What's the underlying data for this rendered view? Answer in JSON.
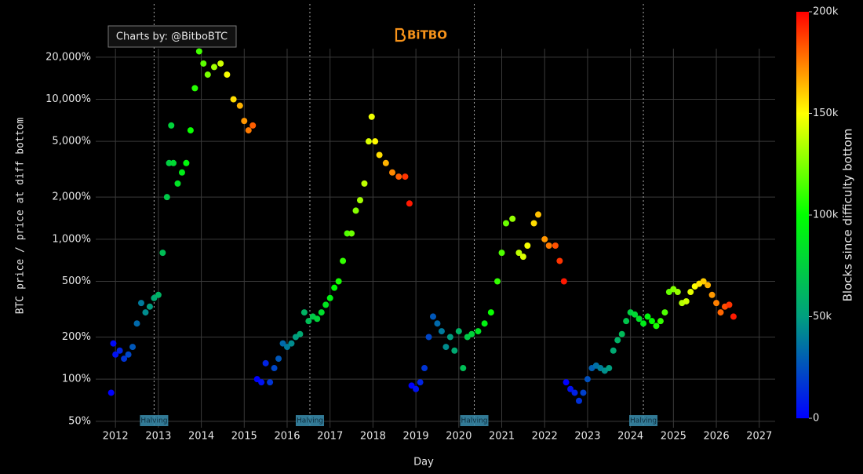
{
  "chart_data": {
    "type": "scatter",
    "logo": "BiTBO",
    "annotation": "Charts by: @BitboBTC",
    "x_label": "Day",
    "y_label": "BTC price / price at diff bottom",
    "log_y": true,
    "grid": true,
    "xlim": [
      2011.54,
      2027.37
    ],
    "xticks": [
      2012,
      2013,
      2014,
      2015,
      2016,
      2017,
      2018,
      2019,
      2020,
      2021,
      2022,
      2023,
      2024,
      2025,
      2026,
      2027
    ],
    "ylim": [
      45,
      23000
    ],
    "yticks": [
      {
        "value": 50,
        "label": "50%"
      },
      {
        "value": 100,
        "label": "100%"
      },
      {
        "value": 200,
        "label": "200%"
      },
      {
        "value": 500,
        "label": "500%"
      },
      {
        "value": 1000,
        "label": "1,000%"
      },
      {
        "value": 2000,
        "label": "2,000%"
      },
      {
        "value": 5000,
        "label": "5,000%"
      },
      {
        "value": 10000,
        "label": "10,000%"
      },
      {
        "value": 20000,
        "label": "20,000%"
      }
    ],
    "halvings": [
      {
        "x": 2012.9,
        "label": "Halving"
      },
      {
        "x": 2016.53,
        "label": "Halving"
      },
      {
        "x": 2020.36,
        "label": "Halving"
      },
      {
        "x": 2024.3,
        "label": "Halving"
      }
    ],
    "colorbar": {
      "title": "Blocks since difficulty bottom",
      "lim": [
        0,
        200000
      ],
      "ticks": [
        0,
        {
          "value": 50000,
          "label": "50k"
        },
        {
          "value": 100000,
          "label": "100k"
        },
        {
          "value": 150000,
          "label": "150k"
        },
        {
          "value": 200000,
          "label": "200k"
        }
      ],
      "colorscale": [
        "#0000ff",
        "#009f7f",
        "#00ff00",
        "#ffff00",
        "#ff0000"
      ]
    },
    "series": [
      {
        "x": [
          2011.9,
          2011.95,
          2012.0,
          2012.1,
          2012.2,
          2012.3,
          2012.4,
          2012.5,
          2012.6,
          2012.7,
          2012.8,
          2012.9,
          2013.0,
          2013.1,
          2013.2,
          2013.25,
          2013.3,
          2013.35,
          2013.45,
          2013.55,
          2013.65,
          2013.75,
          2013.85,
          2013.95,
          2014.05,
          2014.15,
          2014.3,
          2014.45,
          2014.6,
          2014.75,
          2014.9,
          2015.0,
          2015.1,
          2015.2
        ],
        "values": [
          80,
          180,
          150,
          160,
          140,
          150,
          170,
          250,
          350,
          300,
          330,
          380,
          400,
          800,
          2000,
          3500,
          6500,
          3500,
          2500,
          3000,
          3500,
          6000,
          12000,
          22000,
          18000,
          15000,
          17000,
          18000,
          15000,
          10000,
          9000,
          7000,
          6000,
          6500
        ],
        "blocks": [
          0,
          2750,
          5500,
          11000,
          16500,
          22000,
          27500,
          33000,
          38500,
          44000,
          49500,
          55000,
          60500,
          66000,
          71500,
          74250,
          77000,
          79750,
          85250,
          90750,
          96250,
          101750,
          107250,
          112750,
          118250,
          123750,
          132000,
          140250,
          148500,
          156750,
          165000,
          170500,
          176000,
          181500
        ]
      },
      {
        "x": [
          2015.3,
          2015.4,
          2015.5,
          2015.6,
          2015.7,
          2015.8,
          2015.9,
          2016.0,
          2016.1,
          2016.2,
          2016.3,
          2016.4,
          2016.5,
          2016.6,
          2016.7,
          2016.8,
          2016.9,
          2017.0,
          2017.1,
          2017.2,
          2017.3,
          2017.4,
          2017.5,
          2017.6,
          2017.7,
          2017.8,
          2017.9,
          2017.97,
          2018.05,
          2018.15,
          2018.3,
          2018.45,
          2018.6,
          2018.75,
          2018.85
        ],
        "values": [
          100,
          95,
          130,
          95,
          120,
          140,
          180,
          170,
          180,
          200,
          210,
          300,
          260,
          280,
          270,
          300,
          340,
          380,
          450,
          500,
          700,
          1100,
          1100,
          1600,
          1900,
          2500,
          5000,
          7500,
          5000,
          4000,
          3500,
          3000,
          2800,
          2800,
          1800
        ],
        "blocks": [
          0,
          5500,
          11000,
          16500,
          22000,
          27500,
          33000,
          38500,
          44000,
          49500,
          55000,
          60500,
          66000,
          71500,
          77000,
          82500,
          88000,
          93500,
          99000,
          104500,
          110000,
          115500,
          121000,
          126500,
          132000,
          137500,
          143000,
          146850,
          151250,
          156750,
          165000,
          173250,
          181500,
          189750,
          195250
        ]
      },
      {
        "x": [
          2018.9,
          2019.0,
          2019.1,
          2019.2,
          2019.3,
          2019.4,
          2019.5,
          2019.6,
          2019.7,
          2019.8,
          2019.9,
          2020.0,
          2020.1,
          2020.2,
          2020.3,
          2020.45,
          2020.6,
          2020.75,
          2020.9,
          2021.0,
          2021.1,
          2021.25,
          2021.4,
          2021.5,
          2021.6,
          2021.75,
          2021.85,
          2022.0,
          2022.1,
          2022.25,
          2022.35,
          2022.45
        ],
        "values": [
          90,
          85,
          95,
          120,
          200,
          280,
          250,
          220,
          170,
          200,
          160,
          220,
          120,
          200,
          210,
          220,
          250,
          300,
          500,
          800,
          1300,
          1400,
          800,
          750,
          900,
          1300,
          1500,
          1000,
          900,
          900,
          700,
          500
        ],
        "blocks": [
          0,
          5500,
          11000,
          16500,
          22000,
          27500,
          33000,
          38500,
          44000,
          49500,
          55000,
          60500,
          66000,
          71500,
          77000,
          85250,
          93500,
          101750,
          110000,
          115500,
          121000,
          129250,
          137500,
          143000,
          148500,
          156750,
          162250,
          170500,
          176000,
          184250,
          189750,
          195250
        ]
      },
      {
        "x": [
          2022.5,
          2022.6,
          2022.7,
          2022.8,
          2022.9,
          2023.0,
          2023.1,
          2023.2,
          2023.3,
          2023.4,
          2023.5,
          2023.6,
          2023.7,
          2023.8,
          2023.9,
          2024.0,
          2024.1,
          2024.2,
          2024.3,
          2024.4,
          2024.5,
          2024.6,
          2024.7,
          2024.8,
          2024.9,
          2025.0,
          2025.1,
          2025.2,
          2025.3,
          2025.4,
          2025.5,
          2025.6,
          2025.7,
          2025.8,
          2025.9,
          2026.0,
          2026.1,
          2026.2,
          2026.3,
          2026.4
        ],
        "values": [
          95,
          85,
          80,
          70,
          80,
          100,
          120,
          125,
          120,
          115,
          120,
          160,
          190,
          210,
          260,
          300,
          290,
          270,
          250,
          280,
          260,
          240,
          260,
          300,
          420,
          440,
          420,
          350,
          360,
          420,
          460,
          480,
          500,
          470,
          400,
          350,
          300,
          330,
          340,
          280
        ],
        "blocks": [
          0,
          5000,
          10000,
          15000,
          20000,
          25000,
          30000,
          35000,
          40000,
          45000,
          50000,
          55000,
          60000,
          65000,
          70000,
          75000,
          80000,
          85000,
          90000,
          95000,
          100000,
          105000,
          110000,
          115000,
          120000,
          125000,
          130000,
          135000,
          140000,
          145000,
          150000,
          155000,
          160000,
          165000,
          170000,
          175000,
          180000,
          185000,
          190000,
          195000
        ]
      }
    ]
  }
}
